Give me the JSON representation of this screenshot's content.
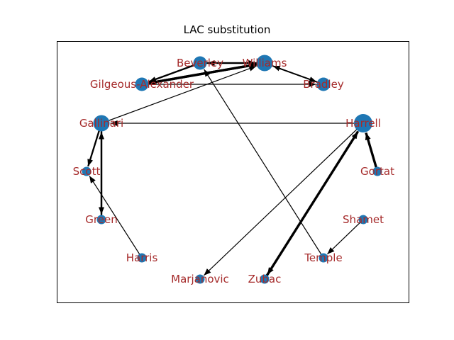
{
  "title": "LAC substitution",
  "node_color": "#1f77b4",
  "label_color": "#a52a2a",
  "nodes": [
    {
      "id": "Beverley",
      "label": "Beverley",
      "size": "medium"
    },
    {
      "id": "Williams",
      "label": "Williams",
      "size": "large"
    },
    {
      "id": "Gilgeous-Alexander",
      "label": "Gilgeous-Alexander",
      "size": "medium"
    },
    {
      "id": "Bradley",
      "label": "Bradley",
      "size": "medium"
    },
    {
      "id": "Gallinari",
      "label": "Gallinari",
      "size": "large"
    },
    {
      "id": "Harrell",
      "label": "Harrell",
      "size": "xlarge"
    },
    {
      "id": "Scott",
      "label": "Scott",
      "size": "small"
    },
    {
      "id": "Gortat",
      "label": "Gortat",
      "size": "small"
    },
    {
      "id": "Green",
      "label": "Green",
      "size": "small"
    },
    {
      "id": "Shamet",
      "label": "Shamet",
      "size": "small"
    },
    {
      "id": "Harris",
      "label": "Harris",
      "size": "small"
    },
    {
      "id": "Temple",
      "label": "Temple",
      "size": "small"
    },
    {
      "id": "Marjanovic",
      "label": "Marjanovic",
      "size": "small"
    },
    {
      "id": "Zubac",
      "label": "Zubac",
      "size": "small"
    }
  ],
  "edges": [
    {
      "from": "Williams",
      "to": "Beverley",
      "weight": 2
    },
    {
      "from": "Beverley",
      "to": "Williams",
      "weight": 2
    },
    {
      "from": "Williams",
      "to": "Gilgeous-Alexander",
      "weight": 3
    },
    {
      "from": "Gilgeous-Alexander",
      "to": "Williams",
      "weight": 3
    },
    {
      "from": "Beverley",
      "to": "Gilgeous-Alexander",
      "weight": 2
    },
    {
      "from": "Williams",
      "to": "Bradley",
      "weight": 1.5
    },
    {
      "from": "Bradley",
      "to": "Williams",
      "weight": 1.5
    },
    {
      "from": "Gilgeous-Alexander",
      "to": "Bradley",
      "weight": 1
    },
    {
      "from": "Gallinari",
      "to": "Williams",
      "weight": 1
    },
    {
      "from": "Temple",
      "to": "Beverley",
      "weight": 1
    },
    {
      "from": "Harrell",
      "to": "Gallinari",
      "weight": 1
    },
    {
      "from": "Gortat",
      "to": "Harrell",
      "weight": 3
    },
    {
      "from": "Gallinari",
      "to": "Scott",
      "weight": 2
    },
    {
      "from": "Gallinari",
      "to": "Green",
      "weight": 2
    },
    {
      "from": "Green",
      "to": "Gallinari",
      "weight": 2
    },
    {
      "from": "Harris",
      "to": "Scott",
      "weight": 1
    },
    {
      "from": "Shamet",
      "to": "Temple",
      "weight": 1
    },
    {
      "from": "Harrell",
      "to": "Marjanovic",
      "weight": 1
    },
    {
      "from": "Zubac",
      "to": "Harrell",
      "weight": 3
    },
    {
      "from": "Harrell",
      "to": "Zubac",
      "weight": 1
    }
  ]
}
